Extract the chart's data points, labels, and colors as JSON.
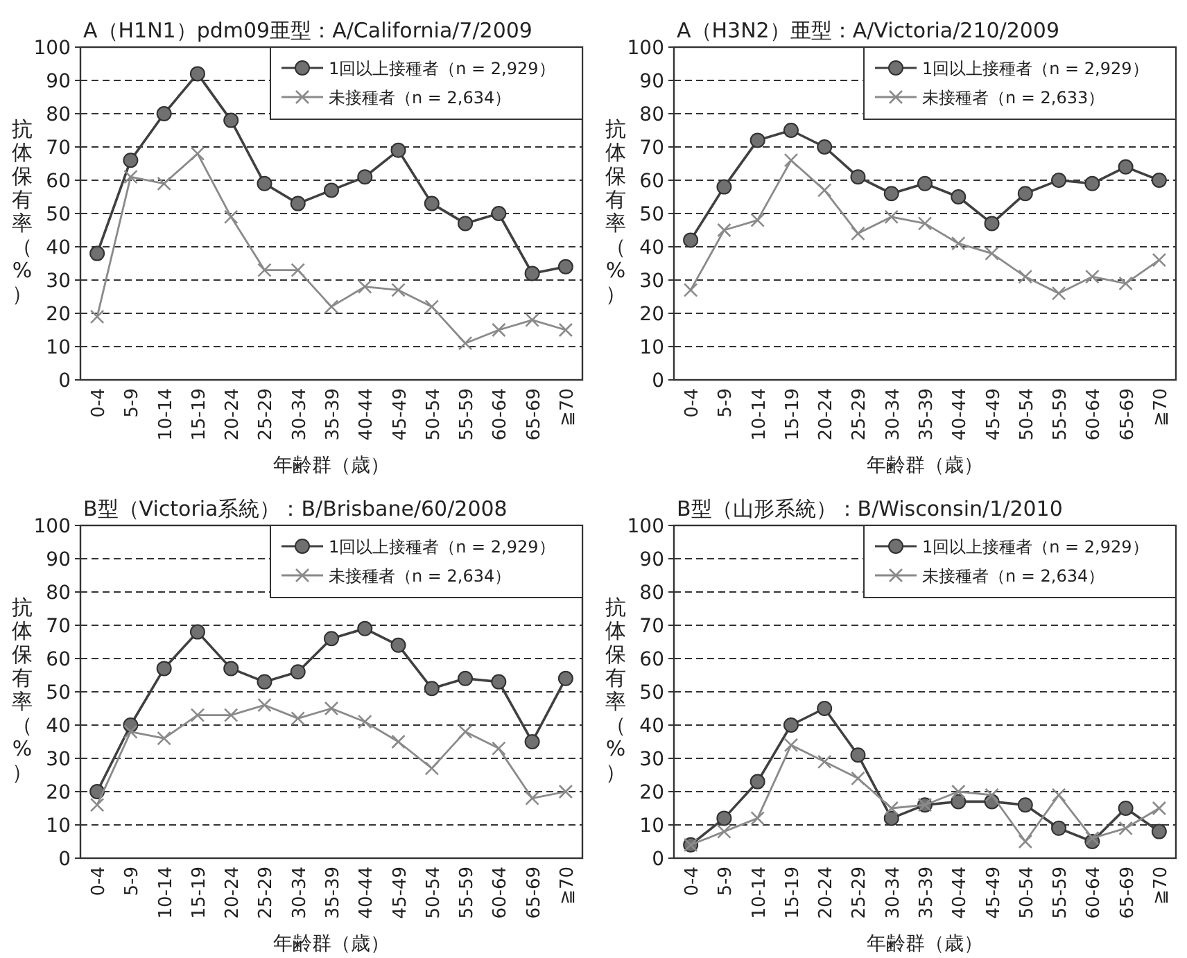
{
  "chart_data": [
    {
      "type": "line",
      "title": "A（H1N1）pdm09亜型：A/California/7/2009",
      "xlabel": "年齢群（歳）",
      "ylabel": "抗体保有率（%）",
      "categories": [
        "0-4",
        "5-9",
        "10-14",
        "15-19",
        "20-24",
        "25-29",
        "30-34",
        "35-39",
        "40-44",
        "45-49",
        "50-54",
        "55-59",
        "60-64",
        "65-69",
        "≧70"
      ],
      "ylim": [
        0,
        100
      ],
      "yticks": [
        0,
        10,
        20,
        30,
        40,
        50,
        60,
        70,
        80,
        90,
        100
      ],
      "grid": "y",
      "legend": "top right",
      "series": [
        {
          "name": "1回以上接種者（n = 2,929）",
          "color": "#404040",
          "marker": "circle",
          "values": [
            38,
            66,
            80,
            92,
            78,
            59,
            53,
            57,
            61,
            69,
            53,
            47,
            50,
            32,
            34
          ]
        },
        {
          "name": "未接種者（n = 2,634）",
          "color": "#8a8a8a",
          "marker": "cross",
          "values": [
            19,
            61,
            59,
            68,
            49,
            33,
            33,
            22,
            28,
            27,
            22,
            11,
            15,
            18,
            15
          ]
        }
      ]
    },
    {
      "type": "line",
      "title": "A（H3N2）亜型：A/Victoria/210/2009",
      "xlabel": "年齢群（歳）",
      "ylabel": "抗体保有率（%）",
      "categories": [
        "0-4",
        "5-9",
        "10-14",
        "15-19",
        "20-24",
        "25-29",
        "30-34",
        "35-39",
        "40-44",
        "45-49",
        "50-54",
        "55-59",
        "60-64",
        "65-69",
        "≧70"
      ],
      "ylim": [
        0,
        100
      ],
      "yticks": [
        0,
        10,
        20,
        30,
        40,
        50,
        60,
        70,
        80,
        90,
        100
      ],
      "grid": "y",
      "legend": "top right",
      "series": [
        {
          "name": "1回以上接種者（n = 2,929）",
          "color": "#404040",
          "marker": "circle",
          "values": [
            42,
            58,
            72,
            75,
            70,
            61,
            56,
            59,
            55,
            47,
            56,
            60,
            59,
            64,
            60
          ]
        },
        {
          "name": "未接種者（n = 2,633）",
          "color": "#8a8a8a",
          "marker": "cross",
          "values": [
            27,
            45,
            48,
            66,
            57,
            44,
            49,
            47,
            41,
            38,
            31,
            26,
            31,
            29,
            36
          ]
        }
      ]
    },
    {
      "type": "line",
      "title": "B型（Victoria系統）：B/Brisbane/60/2008",
      "xlabel": "年齢群（歳）",
      "ylabel": "抗体保有率（%）",
      "categories": [
        "0-4",
        "5-9",
        "10-14",
        "15-19",
        "20-24",
        "25-29",
        "30-34",
        "35-39",
        "40-44",
        "45-49",
        "50-54",
        "55-59",
        "60-64",
        "65-69",
        "≧70"
      ],
      "ylim": [
        0,
        100
      ],
      "yticks": [
        0,
        10,
        20,
        30,
        40,
        50,
        60,
        70,
        80,
        90,
        100
      ],
      "grid": "y",
      "legend": "top right",
      "series": [
        {
          "name": "1回以上接種者（n = 2,929）",
          "color": "#404040",
          "marker": "circle",
          "values": [
            20,
            40,
            57,
            68,
            57,
            53,
            56,
            66,
            69,
            64,
            51,
            54,
            53,
            35,
            54
          ]
        },
        {
          "name": "未接種者（n = 2,634）",
          "color": "#8a8a8a",
          "marker": "cross",
          "values": [
            16,
            38,
            36,
            43,
            43,
            46,
            42,
            45,
            41,
            35,
            27,
            38,
            33,
            18,
            20
          ]
        }
      ]
    },
    {
      "type": "line",
      "title": "B型（山形系統）：B/Wisconsin/1/2010",
      "xlabel": "年齢群（歳）",
      "ylabel": "抗体保有率（%）",
      "categories": [
        "0-4",
        "5-9",
        "10-14",
        "15-19",
        "20-24",
        "25-29",
        "30-34",
        "35-39",
        "40-44",
        "45-49",
        "50-54",
        "55-59",
        "60-64",
        "65-69",
        "≧70"
      ],
      "ylim": [
        0,
        100
      ],
      "yticks": [
        0,
        10,
        20,
        30,
        40,
        50,
        60,
        70,
        80,
        90,
        100
      ],
      "grid": "y",
      "legend": "top right",
      "series": [
        {
          "name": "1回以上接種者（n = 2,929）",
          "color": "#404040",
          "marker": "circle",
          "values": [
            4,
            12,
            23,
            40,
            45,
            31,
            12,
            16,
            17,
            17,
            16,
            9,
            5,
            15,
            8
          ]
        },
        {
          "name": "未接種者（n = 2,634）",
          "color": "#8a8a8a",
          "marker": "cross",
          "values": [
            4,
            8,
            12,
            34,
            29,
            24,
            15,
            16,
            20,
            19,
            5,
            19,
            6,
            9,
            15
          ]
        }
      ]
    }
  ]
}
